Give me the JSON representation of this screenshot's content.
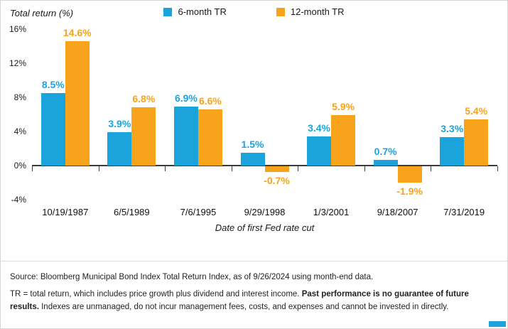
{
  "chart_data": {
    "type": "bar",
    "title": "",
    "ylabel": "Total return (%)",
    "xlabel": "Date of first Fed rate cut",
    "ylim": [
      -4,
      16
    ],
    "yticks": [
      16,
      12,
      8,
      4,
      0,
      -4
    ],
    "ytick_suffix": "%",
    "grid": false,
    "legend_position": "top",
    "categories": [
      "10/19/1987",
      "6/5/1989",
      "7/6/1995",
      "9/29/1998",
      "1/3/2001",
      "9/18/2007",
      "7/31/2019"
    ],
    "series": [
      {
        "name": "6-month TR",
        "color": "#1ba3dc",
        "values": [
          8.5,
          3.9,
          6.9,
          1.5,
          3.4,
          0.7,
          3.3
        ]
      },
      {
        "name": "12-month TR",
        "color": "#f7a31b",
        "values": [
          14.6,
          6.8,
          6.6,
          -0.7,
          5.9,
          -1.9,
          5.4
        ]
      }
    ]
  },
  "footer": {
    "source": "Source: Bloomberg Municipal Bond Index Total Return Index, as of 9/26/2024 using month-end data.",
    "note_prefix": "TR = total return, which includes price growth plus dividend and interest income. ",
    "note_bold": "Past performance is no guarantee of future results.",
    "note_suffix": " Indexes are unmanaged, do not incur management fees, costs, and expenses and cannot be invested in directly."
  }
}
